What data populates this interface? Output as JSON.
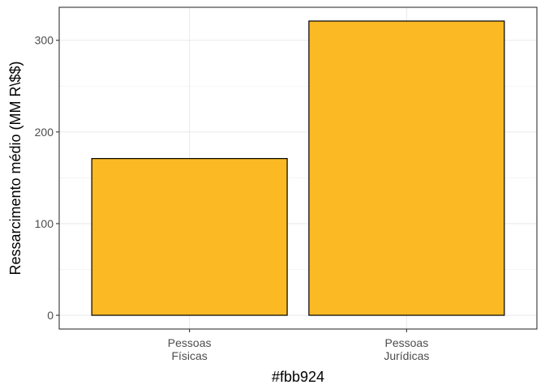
{
  "chart_data": {
    "type": "bar",
    "categories": [
      "Pessoas\nFísicas",
      "Pessoas\nJurídicas"
    ],
    "values": [
      171,
      321
    ],
    "title": "",
    "xlabel": "#fbb924",
    "ylabel": "Ressarcimento médio (MM R\\$$)",
    "ylim": [
      -15,
      336
    ],
    "yticks": [
      0,
      100,
      200,
      300
    ],
    "ytick_labels": [
      "0",
      "100",
      "200",
      "300"
    ],
    "yminor": [
      50,
      150,
      250
    ],
    "grid": true,
    "legend": "none"
  },
  "colors": {
    "bar_fill": "#fbb924",
    "bar_stroke": "#000000",
    "grid": "#ebebeb",
    "panel_border": "#333333",
    "tick_text": "#4d4d4d"
  }
}
